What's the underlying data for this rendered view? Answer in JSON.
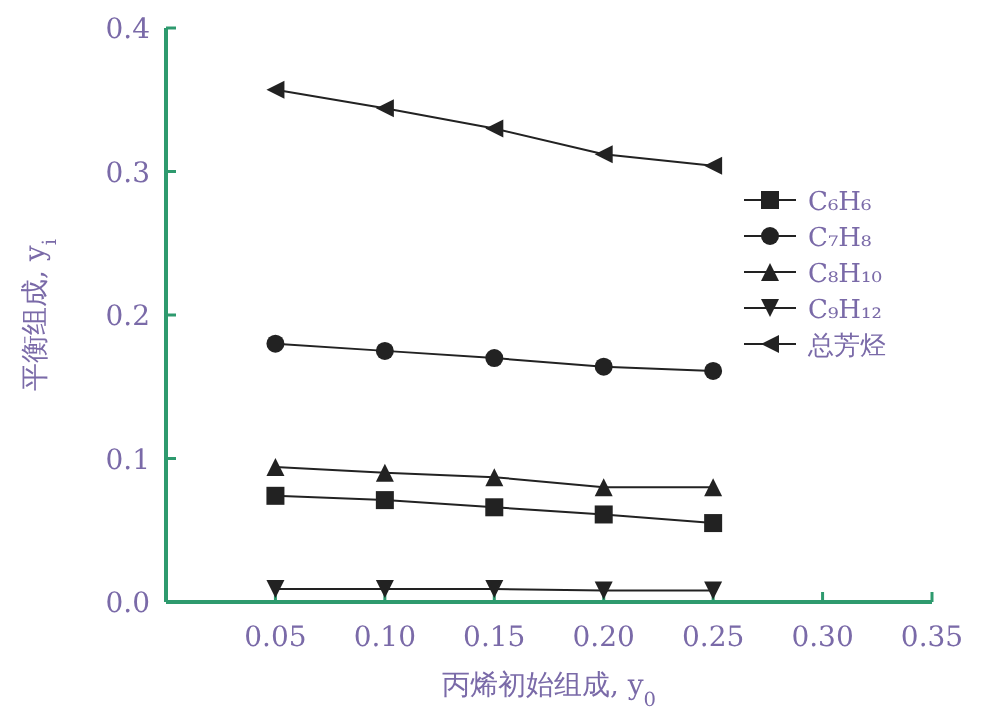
{
  "chart_data": {
    "type": "line",
    "xlabel": "丙烯初始组成, y$_{0}$",
    "ylabel": "平衡组成, y$_{i}$",
    "x": [
      0.05,
      0.1,
      0.15,
      0.2,
      0.25
    ],
    "series": [
      {
        "name": "C₆H₆",
        "color": "#222222",
        "marker": "square",
        "values": [
          0.074,
          0.071,
          0.066,
          0.061,
          0.055
        ]
      },
      {
        "name": "C₇H₈",
        "color": "#222222",
        "marker": "circle",
        "values": [
          0.18,
          0.175,
          0.17,
          0.164,
          0.161
        ]
      },
      {
        "name": "C₈H₁₀",
        "color": "#222222",
        "marker": "triangle",
        "values": [
          0.094,
          0.09,
          0.087,
          0.08,
          0.08
        ]
      },
      {
        "name": "C₉H₁₂",
        "color": "#222222",
        "marker": "triangle-down",
        "values": [
          0.009,
          0.009,
          0.009,
          0.008,
          0.008
        ]
      },
      {
        "name": "总芳烃",
        "color": "#222222",
        "marker": "triangle-left",
        "values": [
          0.357,
          0.344,
          0.33,
          0.312,
          0.304
        ]
      }
    ],
    "xlim": [
      0,
      0.35
    ],
    "ylim": [
      0,
      0.4
    ],
    "xticks": [
      {
        "value": 0.05,
        "label": "0.05"
      },
      {
        "value": 0.1,
        "label": "0.10"
      },
      {
        "value": 0.15,
        "label": "0.15"
      },
      {
        "value": 0.2,
        "label": "0.20"
      },
      {
        "value": 0.25,
        "label": "0.25"
      },
      {
        "value": 0.3,
        "label": "0.30"
      },
      {
        "value": 0.35,
        "label": "0.35"
      }
    ],
    "yticks": [
      {
        "value": 0,
        "label": "0.0"
      },
      {
        "value": 0.1,
        "label": "0.1"
      },
      {
        "value": 0.2,
        "label": "0.2"
      },
      {
        "value": 0.3,
        "label": "0.3"
      },
      {
        "value": 0.4,
        "label": "0.4"
      }
    ],
    "grid": false,
    "legend": "right",
    "line_style": "solid"
  }
}
